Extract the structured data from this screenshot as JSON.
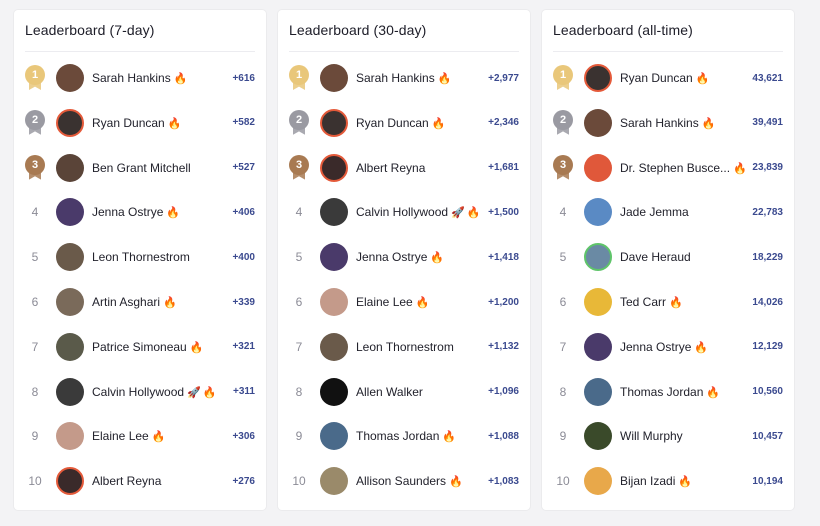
{
  "colors": {
    "gold": "#e9c77a",
    "silver": "#9a9aa2",
    "bronze": "#a87a52",
    "score": "#3b4a8f"
  },
  "fire_icon": "🔥",
  "rocket_icon": "🚀",
  "boards": [
    {
      "title": "Leaderboard (7-day)",
      "rows": [
        {
          "rank": "1",
          "name": "Sarah Hankins",
          "fire": true,
          "rocket": false,
          "score": "+616",
          "avatar_color": "#6b4a3a",
          "ring": "none"
        },
        {
          "rank": "2",
          "name": "Ryan Duncan",
          "fire": true,
          "rocket": false,
          "score": "+582",
          "avatar_color": "#3a3230",
          "ring": "red"
        },
        {
          "rank": "3",
          "name": "Ben Grant Mitchell",
          "fire": false,
          "rocket": false,
          "score": "+527",
          "avatar_color": "#5a4438",
          "ring": "none"
        },
        {
          "rank": "4",
          "name": "Jenna Ostrye",
          "fire": true,
          "rocket": false,
          "score": "+406",
          "avatar_color": "#4a3a6a",
          "ring": "none"
        },
        {
          "rank": "5",
          "name": "Leon Thornestrom",
          "fire": false,
          "rocket": false,
          "score": "+400",
          "avatar_color": "#6a5a4a",
          "ring": "none"
        },
        {
          "rank": "6",
          "name": "Artin Asghari",
          "fire": true,
          "rocket": false,
          "score": "+339",
          "avatar_color": "#7a6a5a",
          "ring": "none"
        },
        {
          "rank": "7",
          "name": "Patrice Simoneau",
          "fire": true,
          "rocket": false,
          "score": "+321",
          "avatar_color": "#5a5a4a",
          "ring": "none"
        },
        {
          "rank": "8",
          "name": "Calvin Hollywood",
          "fire": true,
          "rocket": true,
          "score": "+311",
          "avatar_color": "#3a3a3a",
          "ring": "none"
        },
        {
          "rank": "9",
          "name": "Elaine Lee",
          "fire": true,
          "rocket": false,
          "score": "+306",
          "avatar_color": "#c49a8a",
          "ring": "none"
        },
        {
          "rank": "10",
          "name": "Albert Reyna",
          "fire": false,
          "rocket": false,
          "score": "+276",
          "avatar_color": "#3a2a2a",
          "ring": "red"
        }
      ]
    },
    {
      "title": "Leaderboard (30-day)",
      "rows": [
        {
          "rank": "1",
          "name": "Sarah Hankins",
          "fire": true,
          "rocket": false,
          "score": "+2,977",
          "avatar_color": "#6b4a3a",
          "ring": "none"
        },
        {
          "rank": "2",
          "name": "Ryan Duncan",
          "fire": true,
          "rocket": false,
          "score": "+2,346",
          "avatar_color": "#3a3230",
          "ring": "red"
        },
        {
          "rank": "3",
          "name": "Albert Reyna",
          "fire": false,
          "rocket": false,
          "score": "+1,681",
          "avatar_color": "#3a2a2a",
          "ring": "red"
        },
        {
          "rank": "4",
          "name": "Calvin Hollywood",
          "fire": true,
          "rocket": true,
          "score": "+1,500",
          "avatar_color": "#3a3a3a",
          "ring": "none"
        },
        {
          "rank": "5",
          "name": "Jenna Ostrye",
          "fire": true,
          "rocket": false,
          "score": "+1,418",
          "avatar_color": "#4a3a6a",
          "ring": "none"
        },
        {
          "rank": "6",
          "name": "Elaine Lee",
          "fire": true,
          "rocket": false,
          "score": "+1,200",
          "avatar_color": "#c49a8a",
          "ring": "none"
        },
        {
          "rank": "7",
          "name": "Leon Thornestrom",
          "fire": false,
          "rocket": false,
          "score": "+1,132",
          "avatar_color": "#6a5a4a",
          "ring": "none"
        },
        {
          "rank": "8",
          "name": "Allen Walker",
          "fire": false,
          "rocket": false,
          "score": "+1,096",
          "avatar_color": "#111111",
          "ring": "none"
        },
        {
          "rank": "9",
          "name": "Thomas Jordan",
          "fire": true,
          "rocket": false,
          "score": "+1,088",
          "avatar_color": "#4a6a8a",
          "ring": "none"
        },
        {
          "rank": "10",
          "name": "Allison Saunders",
          "fire": true,
          "rocket": false,
          "score": "+1,083",
          "avatar_color": "#9a8a6a",
          "ring": "none"
        }
      ]
    },
    {
      "title": "Leaderboard (all-time)",
      "rows": [
        {
          "rank": "1",
          "name": "Ryan Duncan",
          "fire": true,
          "rocket": false,
          "score": "43,621",
          "avatar_color": "#3a3230",
          "ring": "red"
        },
        {
          "rank": "2",
          "name": "Sarah Hankins",
          "fire": true,
          "rocket": false,
          "score": "39,491",
          "avatar_color": "#6b4a3a",
          "ring": "none"
        },
        {
          "rank": "3",
          "name": "Dr. Stephen Busce...",
          "fire": true,
          "rocket": false,
          "score": "23,839",
          "avatar_color": "#e0583a",
          "ring": "none"
        },
        {
          "rank": "4",
          "name": "Jade Jemma",
          "fire": false,
          "rocket": false,
          "score": "22,783",
          "avatar_color": "#5a8ac4",
          "ring": "none"
        },
        {
          "rank": "5",
          "name": "Dave Heraud",
          "fire": false,
          "rocket": false,
          "score": "18,229",
          "avatar_color": "#6a8aa4",
          "ring": "green"
        },
        {
          "rank": "6",
          "name": "Ted Carr",
          "fire": true,
          "rocket": false,
          "score": "14,026",
          "avatar_color": "#e8b838",
          "ring": "none"
        },
        {
          "rank": "7",
          "name": "Jenna Ostrye",
          "fire": true,
          "rocket": false,
          "score": "12,129",
          "avatar_color": "#4a3a6a",
          "ring": "none"
        },
        {
          "rank": "8",
          "name": "Thomas Jordan",
          "fire": true,
          "rocket": false,
          "score": "10,560",
          "avatar_color": "#4a6a8a",
          "ring": "none"
        },
        {
          "rank": "9",
          "name": "Will Murphy",
          "fire": false,
          "rocket": false,
          "score": "10,457",
          "avatar_color": "#3a4a2a",
          "ring": "none"
        },
        {
          "rank": "10",
          "name": "Bijan Izadi",
          "fire": true,
          "rocket": false,
          "score": "10,194",
          "avatar_color": "#e8a84a",
          "ring": "none"
        }
      ]
    }
  ]
}
